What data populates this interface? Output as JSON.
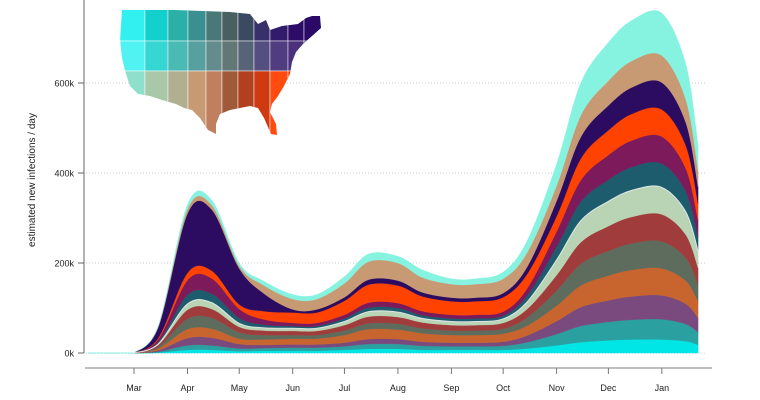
{
  "chart_data": {
    "type": "area",
    "stacked": true,
    "title": "",
    "xlabel": "",
    "ylabel": "estimated new infections / day",
    "ylim": [
      0,
      780000
    ],
    "grid": "horizontal dotted",
    "legend": "map inset top-left",
    "y_ticks": [
      {
        "value": 0,
        "label": "0k"
      },
      {
        "value": 200000,
        "label": "200k"
      },
      {
        "value": 400000,
        "label": "400k"
      },
      {
        "value": 600000,
        "label": "600k"
      }
    ],
    "x_ticks": [
      {
        "date": "2020-03-01",
        "label": "Mar"
      },
      {
        "date": "2020-04-01",
        "label": "Apr"
      },
      {
        "date": "2020-05-01",
        "label": "May"
      },
      {
        "date": "2020-06-01",
        "label": "Jun"
      },
      {
        "date": "2020-07-01",
        "label": "Jul"
      },
      {
        "date": "2020-08-01",
        "label": "Aug"
      },
      {
        "date": "2020-09-01",
        "label": "Sep"
      },
      {
        "date": "2020-10-01",
        "label": "Oct"
      },
      {
        "date": "2020-11-01",
        "label": "Nov"
      },
      {
        "date": "2020-12-01",
        "label": "Dec"
      },
      {
        "date": "2021-01-01",
        "label": "Jan"
      }
    ],
    "x_range": [
      "2020-02-01",
      "2021-01-28"
    ],
    "x": [
      "2020-03-01",
      "2020-03-15",
      "2020-04-01",
      "2020-04-15",
      "2020-05-01",
      "2020-05-15",
      "2020-06-01",
      "2020-06-15",
      "2020-07-01",
      "2020-07-15",
      "2020-08-01",
      "2020-08-15",
      "2020-09-01",
      "2020-09-15",
      "2020-10-01",
      "2020-10-15",
      "2020-11-01",
      "2020-11-15",
      "2020-12-01",
      "2020-12-15",
      "2021-01-01",
      "2021-01-15",
      "2021-01-22"
    ],
    "value_unit": 1000,
    "series": [
      {
        "color": "#00e6e6",
        "values": [
          0,
          1,
          7,
          7,
          4,
          5,
          5,
          5,
          7,
          9,
          9,
          7,
          7,
          7,
          7,
          10,
          17,
          24,
          28,
          30,
          30,
          26,
          18
        ]
      },
      {
        "color": "#2aa0a0",
        "values": [
          0,
          2,
          10,
          10,
          6,
          6,
          7,
          7,
          8,
          11,
          11,
          9,
          8,
          8,
          9,
          14,
          25,
          36,
          41,
          44,
          45,
          38,
          28
        ]
      },
      {
        "color": "#7a4a7e",
        "values": [
          0,
          3,
          16,
          17,
          10,
          7,
          7,
          7,
          8,
          11,
          11,
          9,
          8,
          8,
          9,
          15,
          29,
          42,
          48,
          52,
          53,
          45,
          32
        ]
      },
      {
        "color": "#c8642e",
        "values": [
          0,
          4,
          20,
          20,
          12,
          12,
          13,
          13,
          17,
          22,
          21,
          19,
          17,
          17,
          18,
          22,
          34,
          48,
          55,
          59,
          60,
          51,
          37
        ]
      },
      {
        "color": "#5e6c5e",
        "values": [
          0,
          4,
          23,
          24,
          14,
          10,
          8,
          8,
          10,
          13,
          13,
          11,
          10,
          10,
          11,
          18,
          34,
          48,
          55,
          59,
          60,
          51,
          37
        ]
      },
      {
        "color": "#a03c3c",
        "values": [
          0,
          4,
          20,
          20,
          12,
          10,
          9,
          9,
          12,
          15,
          15,
          13,
          12,
          12,
          13,
          19,
          34,
          48,
          55,
          59,
          60,
          51,
          37
        ]
      },
      {
        "color": "#b8d4b4",
        "values": [
          0,
          2,
          13,
          14,
          8,
          6,
          6,
          6,
          8,
          11,
          11,
          9,
          8,
          8,
          9,
          16,
          34,
          48,
          55,
          59,
          60,
          51,
          37
        ]
      },
      {
        "color": "#1c5c6c",
        "values": [
          0,
          4,
          20,
          20,
          12,
          7,
          5,
          5,
          7,
          9,
          9,
          7,
          7,
          7,
          7,
          14,
          29,
          42,
          48,
          52,
          53,
          45,
          32
        ]
      },
      {
        "color": "#7c1a5c",
        "values": [
          0,
          6,
          33,
          34,
          20,
          12,
          7,
          7,
          8,
          11,
          11,
          9,
          8,
          8,
          9,
          16,
          34,
          48,
          55,
          59,
          60,
          51,
          37
        ]
      },
      {
        "color": "#ff4200",
        "values": [
          0,
          3,
          16,
          17,
          10,
          18,
          23,
          23,
          31,
          40,
          39,
          33,
          30,
          30,
          32,
          32,
          34,
          48,
          55,
          59,
          60,
          51,
          37
        ]
      },
      {
        "color": "#2c0c60",
        "values": [
          0,
          24,
          132,
          136,
          80,
          40,
          7,
          7,
          8,
          11,
          11,
          9,
          8,
          8,
          9,
          16,
          34,
          48,
          55,
          59,
          60,
          51,
          37
        ]
      },
      {
        "color": "#c89a74",
        "values": [
          0,
          2,
          10,
          10,
          6,
          18,
          23,
          23,
          31,
          40,
          39,
          33,
          30,
          30,
          32,
          32,
          34,
          48,
          55,
          59,
          60,
          51,
          37
        ]
      },
      {
        "color": "#86f2e0",
        "values": [
          0,
          1,
          10,
          11,
          6,
          9,
          10,
          10,
          15,
          17,
          15,
          17,
          12,
          12,
          15,
          26,
          48,
          72,
          85,
          90,
          94,
          78,
          54
        ]
      }
    ]
  }
}
